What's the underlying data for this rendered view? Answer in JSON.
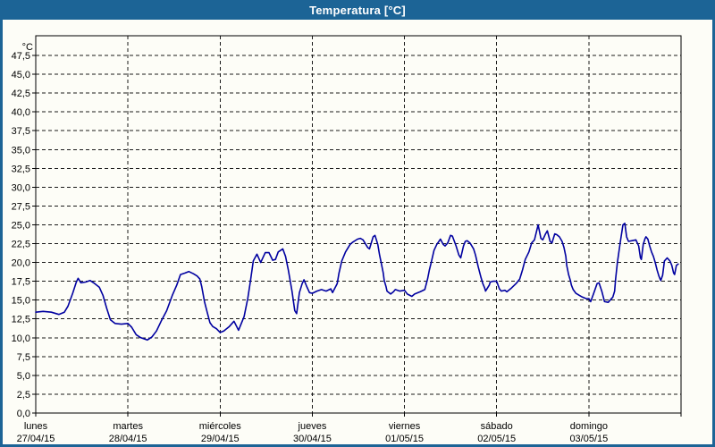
{
  "window": {
    "title": "Temperatura [°C]"
  },
  "colors": {
    "titlebar_bg": "#1c6496",
    "frame": "#1c6496",
    "canvas_bg": "#fdfdf7",
    "grid": "#1a1a1a",
    "axis": "#000000",
    "text": "#000000",
    "title_text": "#ffffff",
    "line": "#0000a0"
  },
  "chart_data": {
    "type": "line",
    "title": "Temperatura [°C]",
    "ylabel": "°C",
    "ylim": [
      0,
      47.5
    ],
    "y_tick_step": 2.5,
    "y_tick_labels": [
      "0,0",
      "2,5",
      "5,0",
      "7,5",
      "10,0",
      "12,5",
      "15,0",
      "17,5",
      "20,0",
      "22,5",
      "25,0",
      "27,5",
      "30,0",
      "32,5",
      "35,0",
      "37,5",
      "40,0",
      "42,5",
      "45,0",
      "47,5"
    ],
    "x_categories": [
      {
        "name": "lunes",
        "date": "27/04/15"
      },
      {
        "name": "martes",
        "date": "28/04/15"
      },
      {
        "name": "miércoles",
        "date": "29/04/15"
      },
      {
        "name": "jueves",
        "date": "30/04/15"
      },
      {
        "name": "viernes",
        "date": "01/05/15"
      },
      {
        "name": "sábado",
        "date": "02/05/15"
      },
      {
        "name": "domingo",
        "date": "03/05/15"
      }
    ],
    "x_span_days": 7,
    "grid": "dashed",
    "legend": "none",
    "series": [
      {
        "name": "Temperatura",
        "unit": "°C",
        "color": "#0000a0",
        "points": [
          [
            0.0,
            13.4
          ],
          [
            0.08,
            13.5
          ],
          [
            0.17,
            13.4
          ],
          [
            0.25,
            13.1
          ],
          [
            0.31,
            13.4
          ],
          [
            0.35,
            14.2
          ],
          [
            0.4,
            15.9
          ],
          [
            0.44,
            17.4
          ],
          [
            0.46,
            17.9
          ],
          [
            0.49,
            17.3
          ],
          [
            0.54,
            17.4
          ],
          [
            0.59,
            17.6
          ],
          [
            0.64,
            17.2
          ],
          [
            0.69,
            16.7
          ],
          [
            0.73,
            15.6
          ],
          [
            0.77,
            13.9
          ],
          [
            0.81,
            12.4
          ],
          [
            0.86,
            11.9
          ],
          [
            0.93,
            11.8
          ],
          [
            1.0,
            11.9
          ],
          [
            1.04,
            11.4
          ],
          [
            1.09,
            10.4
          ],
          [
            1.14,
            10.0
          ],
          [
            1.21,
            9.7
          ],
          [
            1.26,
            10.1
          ],
          [
            1.31,
            10.9
          ],
          [
            1.36,
            12.2
          ],
          [
            1.42,
            13.6
          ],
          [
            1.48,
            15.6
          ],
          [
            1.53,
            17.0
          ],
          [
            1.57,
            18.4
          ],
          [
            1.62,
            18.6
          ],
          [
            1.66,
            18.8
          ],
          [
            1.71,
            18.5
          ],
          [
            1.75,
            18.2
          ],
          [
            1.78,
            17.8
          ],
          [
            1.8,
            16.8
          ],
          [
            1.83,
            14.8
          ],
          [
            1.86,
            13.4
          ],
          [
            1.89,
            12.0
          ],
          [
            1.92,
            11.5
          ],
          [
            1.96,
            11.2
          ],
          [
            2.0,
            10.7
          ],
          [
            2.04,
            10.9
          ],
          [
            2.1,
            11.5
          ],
          [
            2.15,
            12.2
          ],
          [
            2.2,
            11.0
          ],
          [
            2.26,
            12.8
          ],
          [
            2.3,
            15.2
          ],
          [
            2.33,
            17.6
          ],
          [
            2.36,
            20.2
          ],
          [
            2.4,
            21.1
          ],
          [
            2.44,
            20.0
          ],
          [
            2.49,
            21.3
          ],
          [
            2.53,
            21.3
          ],
          [
            2.57,
            20.3
          ],
          [
            2.6,
            20.4
          ],
          [
            2.63,
            21.4
          ],
          [
            2.68,
            21.8
          ],
          [
            2.71,
            20.8
          ],
          [
            2.74,
            19.0
          ],
          [
            2.78,
            16.2
          ],
          [
            2.81,
            13.6
          ],
          [
            2.83,
            13.2
          ],
          [
            2.86,
            16.0
          ],
          [
            2.89,
            17.2
          ],
          [
            2.91,
            17.7
          ],
          [
            2.94,
            16.8
          ],
          [
            2.97,
            16.0
          ],
          [
            3.0,
            15.9
          ],
          [
            3.05,
            16.2
          ],
          [
            3.1,
            16.4
          ],
          [
            3.15,
            16.2
          ],
          [
            3.2,
            16.5
          ],
          [
            3.22,
            16.0
          ],
          [
            3.27,
            17.2
          ],
          [
            3.29,
            18.6
          ],
          [
            3.32,
            20.2
          ],
          [
            3.36,
            21.4
          ],
          [
            3.41,
            22.4
          ],
          [
            3.44,
            22.7
          ],
          [
            3.49,
            23.1
          ],
          [
            3.52,
            23.2
          ],
          [
            3.55,
            23.0
          ],
          [
            3.6,
            22.0
          ],
          [
            3.62,
            21.8
          ],
          [
            3.66,
            23.4
          ],
          [
            3.68,
            23.6
          ],
          [
            3.71,
            22.4
          ],
          [
            3.73,
            21.0
          ],
          [
            3.75,
            19.8
          ],
          [
            3.77,
            18.6
          ],
          [
            3.78,
            17.6
          ],
          [
            3.8,
            16.8
          ],
          [
            3.81,
            16.2
          ],
          [
            3.85,
            15.8
          ],
          [
            3.88,
            16.1
          ],
          [
            3.9,
            16.4
          ],
          [
            3.95,
            16.2
          ],
          [
            4.0,
            16.3
          ],
          [
            4.03,
            15.8
          ],
          [
            4.08,
            15.5
          ],
          [
            4.11,
            15.8
          ],
          [
            4.17,
            16.1
          ],
          [
            4.22,
            16.4
          ],
          [
            4.25,
            17.8
          ],
          [
            4.27,
            19.0
          ],
          [
            4.29,
            20.0
          ],
          [
            4.32,
            21.6
          ],
          [
            4.35,
            22.4
          ],
          [
            4.39,
            23.1
          ],
          [
            4.42,
            22.4
          ],
          [
            4.44,
            22.2
          ],
          [
            4.47,
            22.6
          ],
          [
            4.5,
            23.6
          ],
          [
            4.52,
            23.5
          ],
          [
            4.56,
            22.2
          ],
          [
            4.59,
            21.0
          ],
          [
            4.61,
            20.6
          ],
          [
            4.64,
            22.2
          ],
          [
            4.66,
            22.8
          ],
          [
            4.68,
            22.9
          ],
          [
            4.71,
            22.6
          ],
          [
            4.73,
            22.2
          ],
          [
            4.75,
            21.8
          ],
          [
            4.77,
            21.0
          ],
          [
            4.8,
            19.4
          ],
          [
            4.83,
            18.0
          ],
          [
            4.85,
            17.2
          ],
          [
            4.87,
            16.6
          ],
          [
            4.88,
            16.2
          ],
          [
            4.92,
            17.0
          ],
          [
            4.93,
            17.4
          ],
          [
            4.96,
            17.5
          ],
          [
            5.0,
            17.5
          ],
          [
            5.03,
            16.5
          ],
          [
            5.05,
            16.2
          ],
          [
            5.09,
            16.3
          ],
          [
            5.11,
            16.1
          ],
          [
            5.16,
            16.6
          ],
          [
            5.21,
            17.2
          ],
          [
            5.25,
            17.8
          ],
          [
            5.28,
            19.0
          ],
          [
            5.31,
            20.4
          ],
          [
            5.35,
            21.4
          ],
          [
            5.38,
            22.6
          ],
          [
            5.41,
            23.0
          ],
          [
            5.45,
            25.0
          ],
          [
            5.48,
            23.2
          ],
          [
            5.5,
            23.0
          ],
          [
            5.53,
            23.8
          ],
          [
            5.55,
            24.2
          ],
          [
            5.58,
            22.8
          ],
          [
            5.6,
            22.6
          ],
          [
            5.63,
            23.8
          ],
          [
            5.65,
            23.7
          ],
          [
            5.68,
            23.4
          ],
          [
            5.71,
            22.8
          ],
          [
            5.73,
            22.0
          ],
          [
            5.75,
            20.8
          ],
          [
            5.76,
            19.6
          ],
          [
            5.78,
            18.4
          ],
          [
            5.8,
            17.6
          ],
          [
            5.81,
            17.0
          ],
          [
            5.83,
            16.4
          ],
          [
            5.86,
            15.9
          ],
          [
            5.9,
            15.6
          ],
          [
            5.93,
            15.4
          ],
          [
            5.97,
            15.2
          ],
          [
            6.0,
            15.2
          ],
          [
            6.02,
            14.8
          ],
          [
            6.05,
            15.8
          ],
          [
            6.09,
            17.2
          ],
          [
            6.11,
            17.3
          ],
          [
            6.14,
            16.2
          ],
          [
            6.17,
            14.8
          ],
          [
            6.21,
            14.7
          ],
          [
            6.26,
            15.4
          ],
          [
            6.28,
            16.2
          ],
          [
            6.29,
            17.8
          ],
          [
            6.31,
            20.0
          ],
          [
            6.34,
            22.6
          ],
          [
            6.37,
            25.0
          ],
          [
            6.39,
            25.2
          ],
          [
            6.41,
            23.4
          ],
          [
            6.43,
            22.8
          ],
          [
            6.47,
            22.9
          ],
          [
            6.51,
            23.0
          ],
          [
            6.54,
            22.2
          ],
          [
            6.56,
            20.6
          ],
          [
            6.57,
            20.4
          ],
          [
            6.59,
            22.4
          ],
          [
            6.61,
            23.2
          ],
          [
            6.62,
            23.4
          ],
          [
            6.64,
            23.1
          ],
          [
            6.66,
            22.2
          ],
          [
            6.68,
            21.4
          ],
          [
            6.7,
            20.8
          ],
          [
            6.72,
            20.0
          ],
          [
            6.74,
            19.0
          ],
          [
            6.76,
            18.2
          ],
          [
            6.78,
            17.6
          ],
          [
            6.8,
            18.3
          ],
          [
            6.82,
            20.2
          ],
          [
            6.85,
            20.6
          ],
          [
            6.88,
            20.2
          ],
          [
            6.9,
            19.6
          ],
          [
            6.92,
            18.6
          ],
          [
            6.93,
            18.4
          ],
          [
            6.95,
            19.6
          ],
          [
            6.97,
            19.8
          ]
        ]
      }
    ]
  }
}
